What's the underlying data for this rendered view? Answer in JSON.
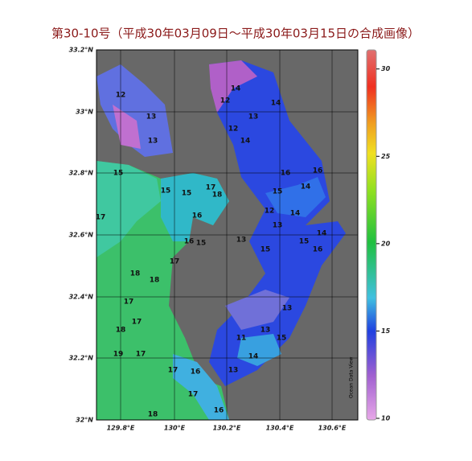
{
  "title": "第30-10号（平成30年03月09日～平成30年03月15日の合成画像）",
  "map": {
    "lat_ticks": [
      "33.2°N",
      "33°N",
      "32.8°N",
      "32.6°N",
      "32.4°N",
      "32.2°N",
      "32°N"
    ],
    "lon_ticks": [
      "129.8°E",
      "130°E",
      "130.2°E",
      "130.4°E",
      "130.6°E"
    ],
    "credit": "Ocean Data View",
    "contour_labels": [
      12,
      13,
      13,
      15,
      15,
      15,
      17,
      18,
      16,
      17,
      16,
      15,
      18,
      18,
      17,
      17,
      17,
      18,
      19,
      17,
      17,
      16,
      17,
      18,
      16,
      14,
      13,
      14,
      12,
      14,
      12,
      16,
      16,
      14,
      15,
      12,
      14,
      13,
      13,
      15,
      15,
      16,
      14,
      13,
      13,
      14,
      15,
      13,
      11
    ]
  },
  "colorbar": {
    "lim": [
      10,
      31
    ],
    "ticks": [
      10,
      15,
      20,
      25,
      30
    ]
  }
}
